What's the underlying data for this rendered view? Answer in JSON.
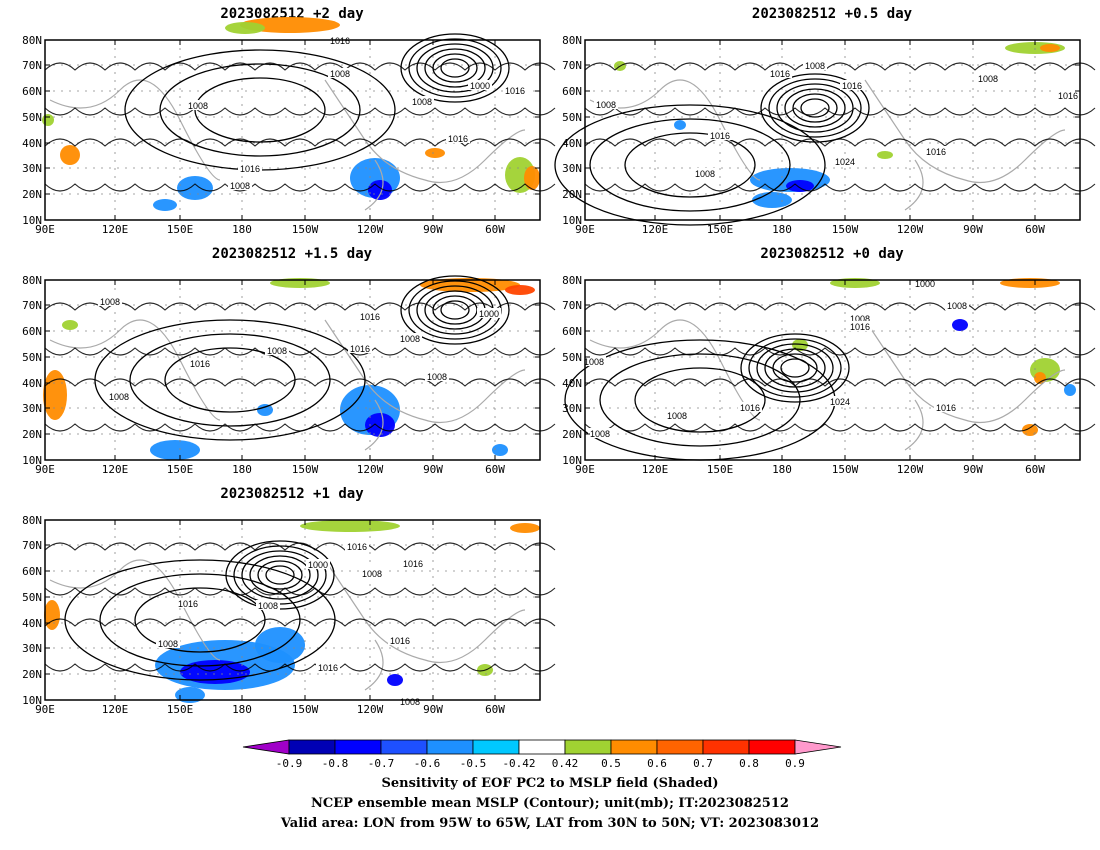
{
  "panels": [
    {
      "title": "2023082512  +2 day"
    },
    {
      "title": "2023082512  +0.5 day"
    },
    {
      "title": "2023082512  +1.5 day"
    },
    {
      "title": "2023082512  +0 day"
    },
    {
      "title": "2023082512  +1 day"
    }
  ],
  "lat_labels": [
    "80N",
    "70N",
    "60N",
    "50N",
    "40N",
    "30N",
    "20N",
    "10N"
  ],
  "lon_labels": [
    "90E",
    "120E",
    "150E",
    "180",
    "150W",
    "120W",
    "90W",
    "60W"
  ],
  "contour_labels": [
    [
      "1016",
      "1008",
      "1000",
      "1016",
      "1008",
      "1008",
      "1016",
      "1016",
      "1008"
    ],
    [
      "1016",
      "1008",
      "1008",
      "1016",
      "1008",
      "1016",
      "1024",
      "1016",
      "1008",
      "1016"
    ],
    [
      "1008",
      "1016",
      "1000",
      "1008",
      "1008",
      "1016",
      "1016",
      "1008",
      "1008"
    ],
    [
      "1000",
      "1008",
      "1008",
      "1016",
      "1008",
      "1024",
      "1016",
      "1016",
      "1008",
      "1008",
      "1016"
    ],
    [
      "1016",
      "1000",
      "1016",
      "1008",
      "1008",
      "1016",
      "1008",
      "1016",
      "1016",
      "1008"
    ]
  ],
  "colorbar": {
    "ticks": [
      "-0.9",
      "-0.8",
      "-0.7",
      "-0.6",
      "-0.5",
      "-0.42",
      "0.42",
      "0.5",
      "0.6",
      "0.7",
      "0.8",
      "0.9"
    ],
    "colors": [
      "#a000c8",
      "#0000b4",
      "#0000ff",
      "#1e50ff",
      "#1e90ff",
      "#00c8ff",
      "#ffffff",
      "#a0d232",
      "#ff8c00",
      "#ff6400",
      "#ff3200",
      "#ff0000",
      "#ff99cc"
    ]
  },
  "footer": {
    "line1": "Sensitivity of EOF PC2 to MSLP field (Shaded)",
    "line2": "NCEP ensemble mean MSLP (Contour); unit(mb); IT:2023082512",
    "line3": "Valid area: LON from 95W to 65W, LAT from 30N to 50N; VT: 2023083012"
  }
}
